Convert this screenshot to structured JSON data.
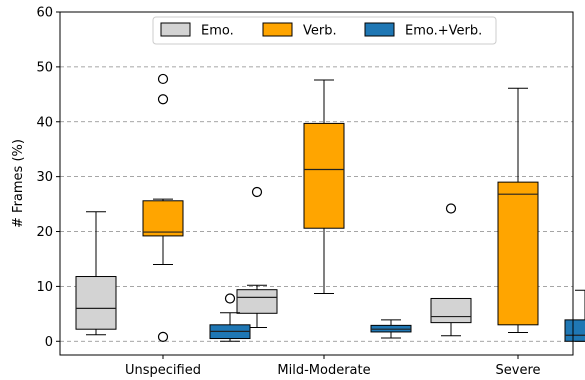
{
  "chart_data": {
    "type": "box",
    "ylabel": "# Frames (%)",
    "xlabel": "",
    "ylim": [
      -2.5,
      60
    ],
    "yticks": [
      0,
      10,
      20,
      30,
      40,
      50,
      60
    ],
    "ytick_labels": [
      "0",
      "10",
      "20",
      "30",
      "40",
      "50",
      "60"
    ],
    "grid": "horizontal-dashed",
    "legend_position": "top-center",
    "categories": [
      "Unspecified",
      "Mild-Moderate",
      "Severe"
    ],
    "series": [
      {
        "name": "Emo.",
        "color": "#d3d3d3",
        "boxes": [
          {
            "whislo": 1.2,
            "q1": 2.2,
            "med": 6.0,
            "q3": 11.8,
            "whishi": 23.6,
            "fliers": []
          },
          {
            "whislo": 2.5,
            "q1": 5.1,
            "med": 8.0,
            "q3": 9.4,
            "whishi": 10.2,
            "fliers": [
              27.2
            ]
          },
          {
            "whislo": 1.0,
            "q1": 3.4,
            "med": 4.5,
            "q3": 7.8,
            "whishi": 7.8,
            "fliers": [
              24.2
            ]
          }
        ]
      },
      {
        "name": "Verb.",
        "color": "#ffa500",
        "boxes": [
          {
            "whislo": 14.0,
            "q1": 19.2,
            "med": 19.9,
            "q3": 25.6,
            "whishi": 25.9,
            "fliers": [
              44.1,
              47.8,
              0.8
            ]
          },
          {
            "whislo": 8.7,
            "q1": 20.6,
            "med": 31.3,
            "q3": 39.7,
            "whishi": 47.6,
            "fliers": []
          },
          {
            "whislo": 1.6,
            "q1": 3.0,
            "med": 26.8,
            "q3": 29.0,
            "whishi": 46.1,
            "fliers": []
          }
        ]
      },
      {
        "name": "Emo.+Verb.",
        "color": "#1f77b4",
        "boxes": [
          {
            "whislo": 0.0,
            "q1": 0.5,
            "med": 1.8,
            "q3": 3.0,
            "whishi": 5.2,
            "fliers": [
              7.8
            ]
          },
          {
            "whislo": 0.6,
            "q1": 1.7,
            "med": 2.2,
            "q3": 2.9,
            "whishi": 3.9,
            "fliers": []
          },
          {
            "whislo": 0.0,
            "q1": 0.0,
            "med": 1.1,
            "q3": 3.9,
            "whishi": 9.3,
            "fliers": []
          }
        ]
      }
    ]
  }
}
